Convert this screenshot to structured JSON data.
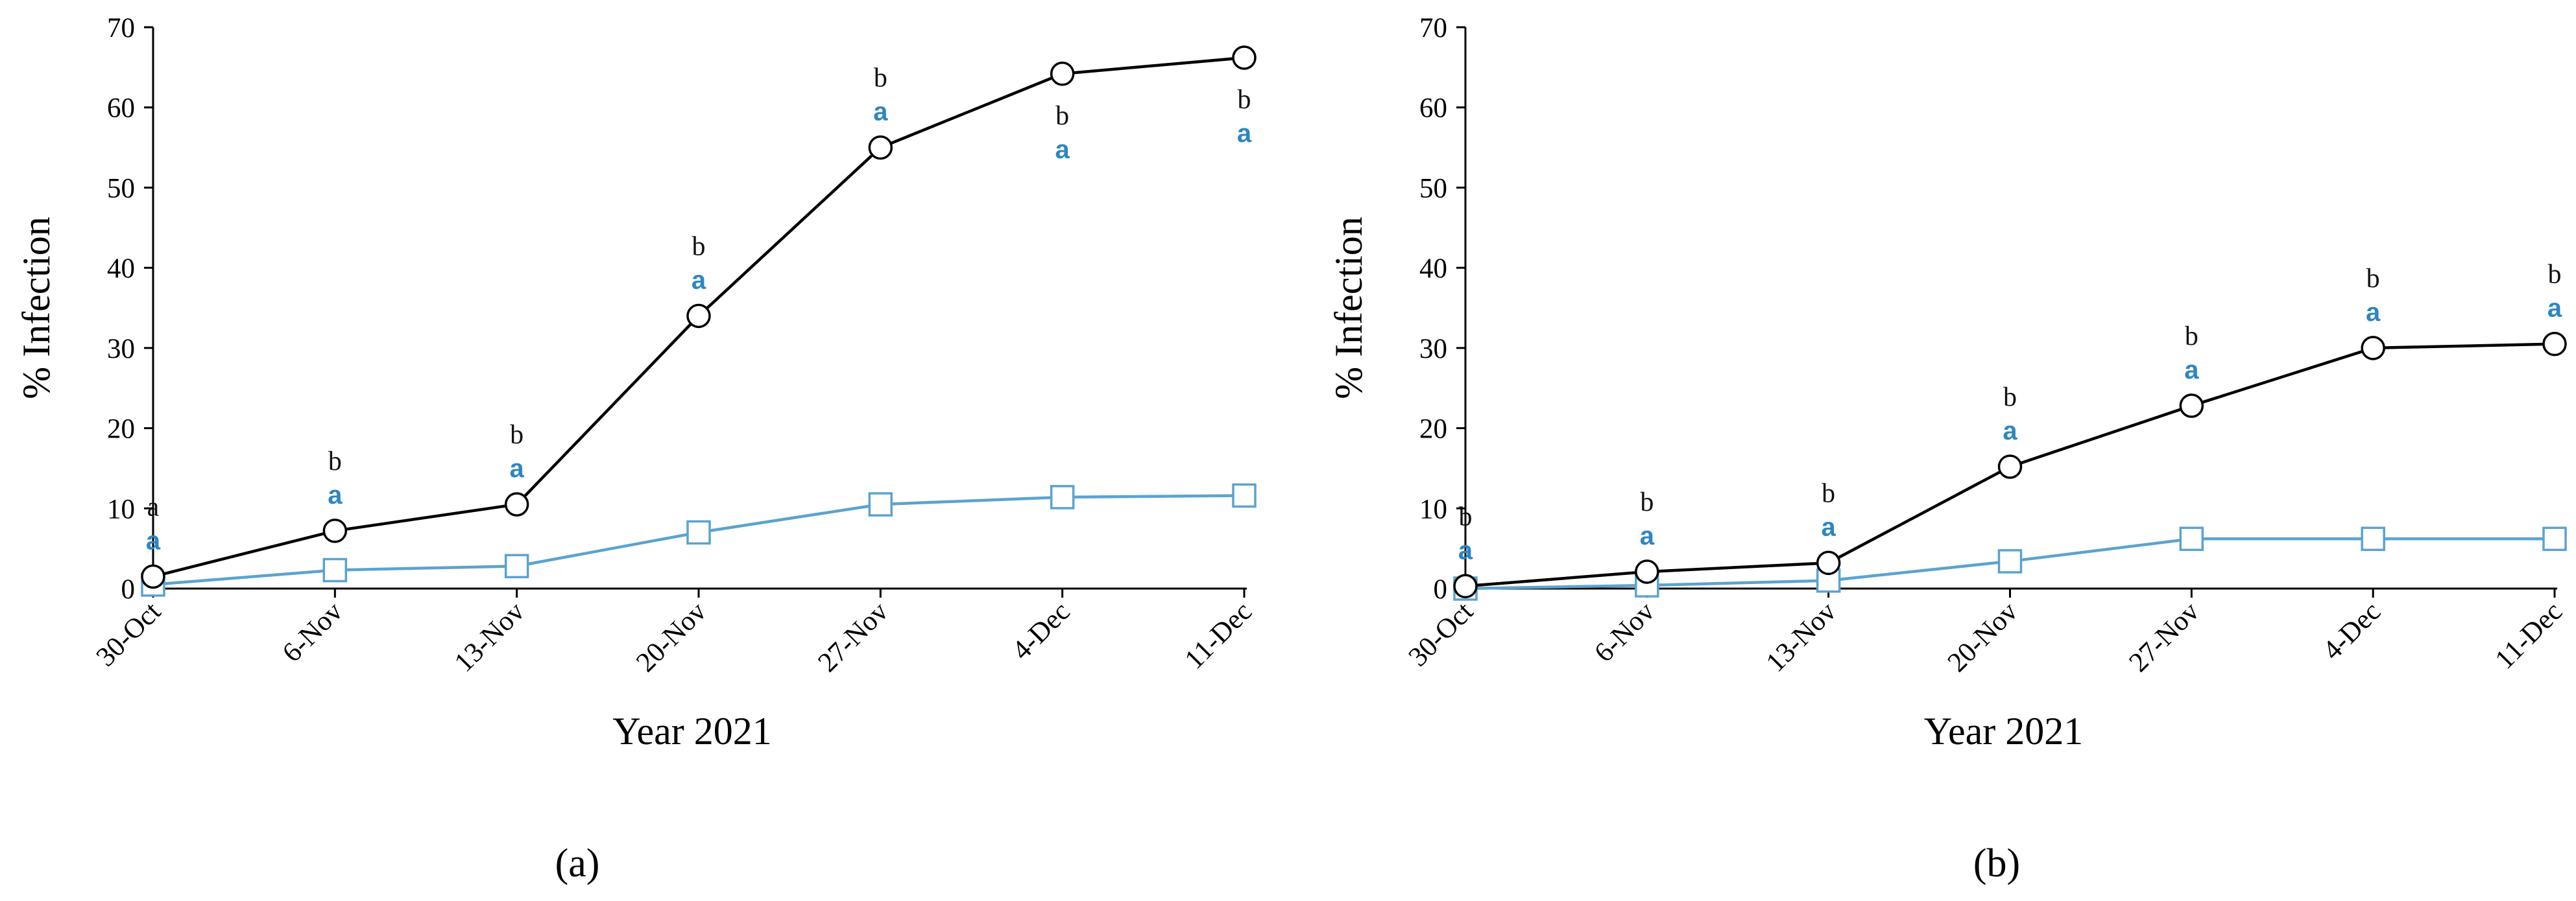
{
  "colors": {
    "treated": "#5ba3cf",
    "control": "#000000",
    "sig_a": "#2e86c1"
  },
  "chart_data": [
    {
      "type": "line",
      "panel": "(a)",
      "xlabel": "Year 2021",
      "ylabel": "% Infection",
      "ylim": [
        0,
        70
      ],
      "yticks": [
        0,
        10,
        20,
        30,
        40,
        50,
        60,
        70
      ],
      "categories": [
        "30-Oct",
        "6-Nov",
        "13-Nov",
        "20-Nov",
        "27-Nov",
        "4-Dec",
        "11-Dec"
      ],
      "series": [
        {
          "marker": "circle",
          "values": [
            1.5,
            7.2,
            10.5,
            34,
            55,
            64.2,
            66.2
          ]
        },
        {
          "marker": "square",
          "values": [
            0.5,
            2.3,
            2.8,
            7,
            10.5,
            11.4,
            11.6
          ]
        }
      ],
      "annotations": [
        {
          "top": "a",
          "bottom": "a",
          "above": 1
        },
        {
          "top": "b",
          "bottom": "a",
          "above": 1
        },
        {
          "top": "b",
          "bottom": "a",
          "above": 1
        },
        {
          "top": "b",
          "bottom": "a",
          "above": 1
        },
        {
          "top": "b",
          "bottom": "a",
          "above": 1
        },
        {
          "top": "b",
          "bottom": "a",
          "above": 0
        },
        {
          "top": "b",
          "bottom": "a",
          "above": 0
        }
      ]
    },
    {
      "type": "line",
      "panel": "(b)",
      "xlabel": "Year 2021",
      "ylabel": "% Infection",
      "ylim": [
        0,
        70
      ],
      "yticks": [
        0,
        10,
        20,
        30,
        40,
        50,
        60,
        70
      ],
      "categories": [
        "30-Oct",
        "6-Nov",
        "13-Nov",
        "20-Nov",
        "27-Nov",
        "4-Dec",
        "11-Dec"
      ],
      "series": [
        {
          "marker": "circle",
          "values": [
            0.3,
            2.1,
            3.2,
            15.2,
            22.8,
            30,
            30.5
          ]
        },
        {
          "marker": "square",
          "values": [
            0,
            0.4,
            1,
            3.4,
            6.2,
            6.2,
            6.2
          ]
        }
      ],
      "annotations": [
        {
          "top": "b",
          "bottom": "a",
          "above": 1
        },
        {
          "top": "b",
          "bottom": "a",
          "above": 1
        },
        {
          "top": "b",
          "bottom": "a",
          "above": 1
        },
        {
          "top": "b",
          "bottom": "a",
          "above": 1
        },
        {
          "top": "b",
          "bottom": "a",
          "above": 1
        },
        {
          "top": "b",
          "bottom": "a",
          "above": 1
        },
        {
          "top": "b",
          "bottom": "a",
          "above": 1
        }
      ]
    }
  ]
}
